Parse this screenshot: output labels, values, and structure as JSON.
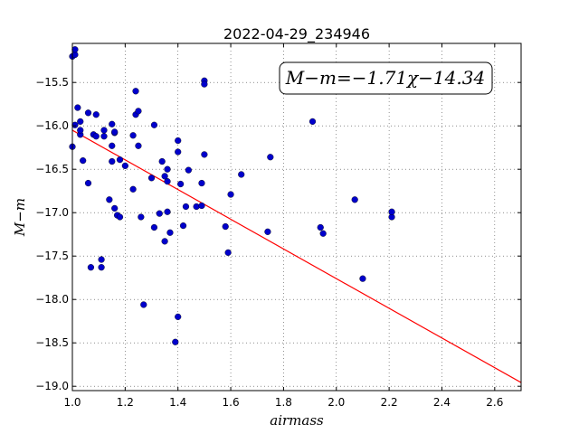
{
  "chart_data": {
    "type": "scatter",
    "title": "2022-04-29_234946",
    "xlabel": "airmass",
    "ylabel": "M−m",
    "xlim": [
      1.0,
      2.7
    ],
    "ylim": [
      -19.05,
      -15.05
    ],
    "xticks": [
      1.0,
      1.2,
      1.4,
      1.6,
      1.8,
      2.0,
      2.2,
      2.4,
      2.6
    ],
    "xtick_labels": [
      "1.0",
      "1.2",
      "1.4",
      "1.6",
      "1.8",
      "2.0",
      "2.2",
      "2.4",
      "2.6"
    ],
    "yticks": [
      -15.5,
      -16.0,
      -16.5,
      -17.0,
      -17.5,
      -18.0,
      -18.5,
      -19.0
    ],
    "ytick_labels": [
      "−15.5",
      "−16.0",
      "−16.5",
      "−17.0",
      "−17.5",
      "−18.0",
      "−18.5",
      "−19.0"
    ],
    "grid": true,
    "annotation": "M−m=−1.71χ−14.34",
    "fit": {
      "slope": -1.71,
      "intercept": -14.34,
      "color": "#ff0000"
    },
    "point_color": "#0000cc",
    "points": [
      [
        1.0,
        -15.2
      ],
      [
        1.01,
        -15.18
      ],
      [
        1.01,
        -15.12
      ],
      [
        1.0,
        -16.24
      ],
      [
        1.01,
        -15.99
      ],
      [
        1.02,
        -15.79
      ],
      [
        1.03,
        -16.1
      ],
      [
        1.03,
        -16.05
      ],
      [
        1.03,
        -15.95
      ],
      [
        1.04,
        -16.4
      ],
      [
        1.06,
        -15.85
      ],
      [
        1.06,
        -16.66
      ],
      [
        1.07,
        -17.63
      ],
      [
        1.08,
        -16.1
      ],
      [
        1.09,
        -16.12
      ],
      [
        1.09,
        -15.87
      ],
      [
        1.11,
        -17.54
      ],
      [
        1.11,
        -17.63
      ],
      [
        1.12,
        -16.05
      ],
      [
        1.12,
        -16.12
      ],
      [
        1.14,
        -16.85
      ],
      [
        1.15,
        -15.98
      ],
      [
        1.15,
        -16.23
      ],
      [
        1.15,
        -16.41
      ],
      [
        1.16,
        -16.08
      ],
      [
        1.16,
        -16.07
      ],
      [
        1.16,
        -16.95
      ],
      [
        1.17,
        -17.03
      ],
      [
        1.18,
        -17.05
      ],
      [
        1.18,
        -16.39
      ],
      [
        1.2,
        -16.46
      ],
      [
        1.23,
        -16.11
      ],
      [
        1.23,
        -16.73
      ],
      [
        1.24,
        -15.6
      ],
      [
        1.24,
        -15.87
      ],
      [
        1.25,
        -15.83
      ],
      [
        1.25,
        -16.23
      ],
      [
        1.26,
        -17.05
      ],
      [
        1.27,
        -18.06
      ],
      [
        1.3,
        -16.6
      ],
      [
        1.31,
        -15.99
      ],
      [
        1.31,
        -17.17
      ],
      [
        1.33,
        -17.01
      ],
      [
        1.34,
        -16.41
      ],
      [
        1.35,
        -16.58
      ],
      [
        1.35,
        -17.33
      ],
      [
        1.36,
        -16.5
      ],
      [
        1.36,
        -16.64
      ],
      [
        1.36,
        -16.99
      ],
      [
        1.37,
        -17.23
      ],
      [
        1.39,
        -18.49
      ],
      [
        1.4,
        -16.17
      ],
      [
        1.4,
        -16.3
      ],
      [
        1.4,
        -18.2
      ],
      [
        1.41,
        -16.67
      ],
      [
        1.42,
        -17.15
      ],
      [
        1.43,
        -16.93
      ],
      [
        1.44,
        -16.51
      ],
      [
        1.47,
        -16.93
      ],
      [
        1.49,
        -16.92
      ],
      [
        1.49,
        -16.66
      ],
      [
        1.5,
        -15.48
      ],
      [
        1.5,
        -15.52
      ],
      [
        1.5,
        -16.33
      ],
      [
        1.58,
        -17.16
      ],
      [
        1.59,
        -17.46
      ],
      [
        1.6,
        -16.79
      ],
      [
        1.64,
        -16.56
      ],
      [
        1.74,
        -17.22
      ],
      [
        1.75,
        -16.36
      ],
      [
        1.91,
        -15.95
      ],
      [
        1.94,
        -17.17
      ],
      [
        1.95,
        -17.24
      ],
      [
        2.07,
        -16.85
      ],
      [
        2.1,
        -17.76
      ],
      [
        2.21,
        -17.05
      ],
      [
        2.21,
        -16.99
      ]
    ]
  }
}
